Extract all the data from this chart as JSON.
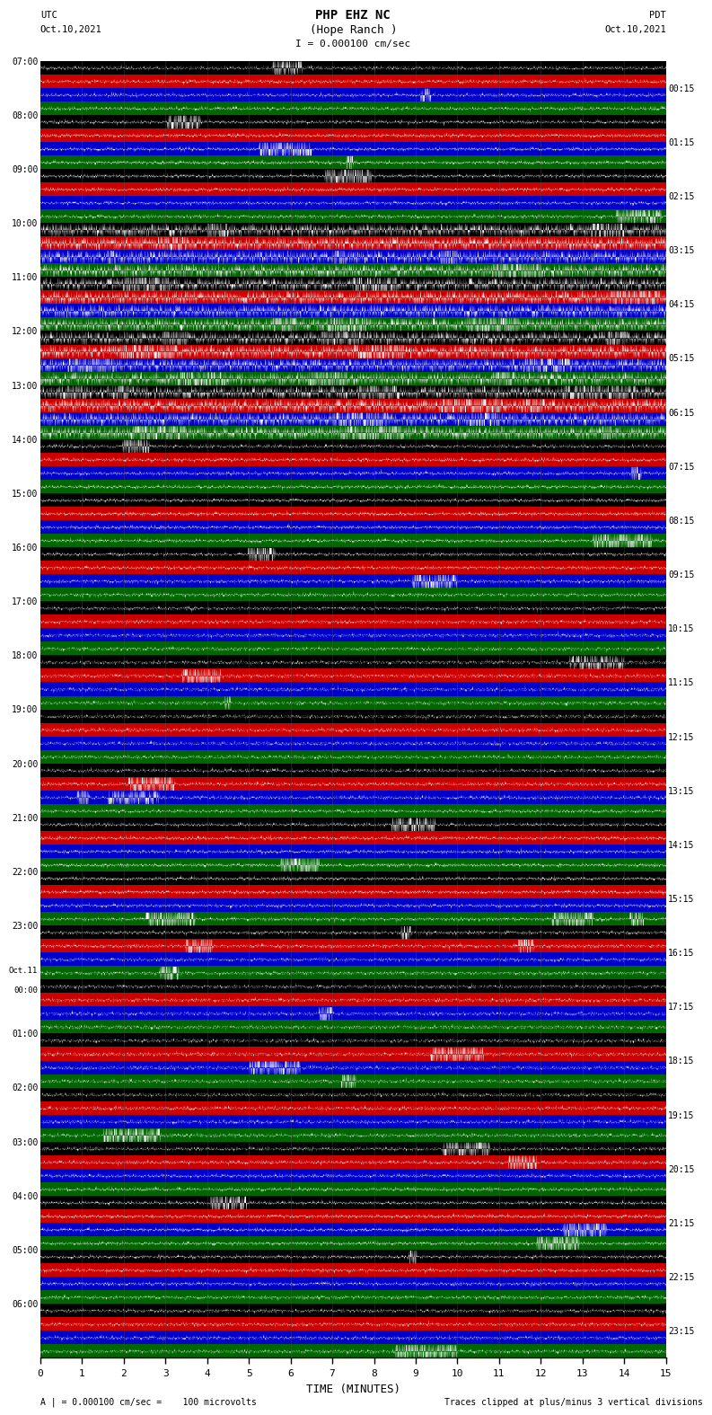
{
  "title_line1": "PHP EHZ NC",
  "title_line2": "(Hope Ranch )",
  "scale_text": "I = 0.000100 cm/sec",
  "utc_label": "UTC",
  "utc_date": "Oct.10,2021",
  "pdt_label": "PDT",
  "pdt_date": "Oct.10,2021",
  "bottom_label1": "A | = 0.000100 cm/sec =    100 microvolts",
  "bottom_label2": "Traces clipped at plus/minus 3 vertical divisions",
  "xlabel": "TIME (MINUTES)",
  "bg_color": "#ffffff",
  "band_colors": [
    "#000000",
    "#cc0000",
    "#0000cc",
    "#006600"
  ],
  "n_hour_rows": 24,
  "traces_per_hour": 4,
  "minutes_per_row": 15,
  "left_times_utc": [
    "07:00",
    "08:00",
    "09:00",
    "10:00",
    "11:00",
    "12:00",
    "13:00",
    "14:00",
    "15:00",
    "16:00",
    "17:00",
    "18:00",
    "19:00",
    "20:00",
    "21:00",
    "22:00",
    "23:00",
    "Oct.11\n00:00",
    "01:00",
    "02:00",
    "03:00",
    "04:00",
    "05:00",
    "06:00"
  ],
  "right_times_pdt": [
    "00:15",
    "01:15",
    "02:15",
    "03:15",
    "04:15",
    "05:15",
    "06:15",
    "07:15",
    "08:15",
    "09:15",
    "10:15",
    "11:15",
    "12:15",
    "13:15",
    "14:15",
    "15:15",
    "16:15",
    "17:15",
    "18:15",
    "19:15",
    "20:15",
    "21:15",
    "22:15",
    "23:15"
  ],
  "seed": 12345,
  "base_noise": 0.18,
  "event_noise": 0.7
}
